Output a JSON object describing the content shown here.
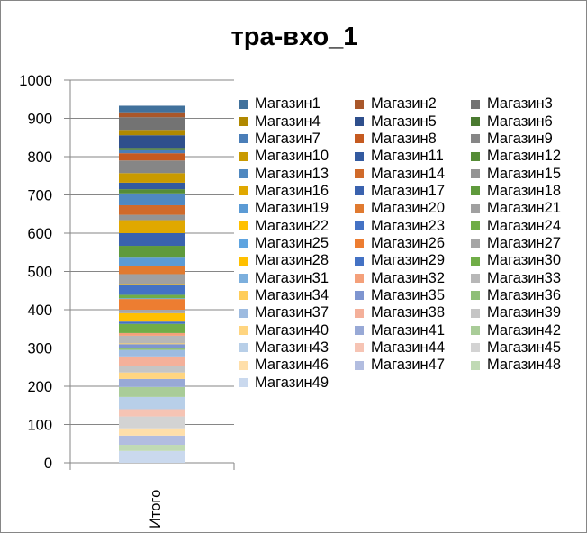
{
  "chart_data": {
    "type": "bar",
    "stacked": true,
    "title": "тра-вхо_1",
    "categories": [
      "Итого"
    ],
    "ylim": [
      0,
      1000
    ],
    "yticks": [
      0,
      100,
      200,
      300,
      400,
      500,
      600,
      700,
      800,
      900,
      1000
    ],
    "grid": true,
    "legend_position": "right",
    "series": [
      {
        "name": "Магазин1",
        "values": [
          17
        ],
        "color": "#41719c"
      },
      {
        "name": "Магазин2",
        "values": [
          13
        ],
        "color": "#a9572a"
      },
      {
        "name": "Магазин3",
        "values": [
          33
        ],
        "color": "#737373"
      },
      {
        "name": "Магазин4",
        "values": [
          14
        ],
        "color": "#b08800"
      },
      {
        "name": "Магазин5",
        "values": [
          33
        ],
        "color": "#2f4f8c"
      },
      {
        "name": "Магазин6",
        "values": [
          6
        ],
        "color": "#4a7a30"
      },
      {
        "name": "Магазин7",
        "values": [
          8
        ],
        "color": "#4a7eb8"
      },
      {
        "name": "Магазин8",
        "values": [
          19
        ],
        "color": "#c55a20"
      },
      {
        "name": "Магазин9",
        "values": [
          33
        ],
        "color": "#868686"
      },
      {
        "name": "Магазин10",
        "values": [
          25
        ],
        "color": "#c99a00"
      },
      {
        "name": "Магазин11",
        "values": [
          17
        ],
        "color": "#335aa0"
      },
      {
        "name": "Магазин12",
        "values": [
          11
        ],
        "color": "#558c36"
      },
      {
        "name": "Магазин13",
        "values": [
          31
        ],
        "color": "#4f88c0"
      },
      {
        "name": "Магазин14",
        "values": [
          25
        ],
        "color": "#d06a2a"
      },
      {
        "name": "Магазин15",
        "values": [
          14
        ],
        "color": "#949494"
      },
      {
        "name": "Магазин16",
        "values": [
          34
        ],
        "color": "#e0a800"
      },
      {
        "name": "Магазин17",
        "values": [
          33
        ],
        "color": "#3a62ae"
      },
      {
        "name": "Магазин18",
        "values": [
          31
        ],
        "color": "#5f9a3c"
      },
      {
        "name": "Магазин19",
        "values": [
          23
        ],
        "color": "#5b9bd5"
      },
      {
        "name": "Магазин20",
        "values": [
          20
        ],
        "color": "#e07a30"
      },
      {
        "name": "Магазин21",
        "values": [
          26
        ],
        "color": "#a0a0a0"
      },
      {
        "name": "Магазин22",
        "values": [
          2
        ],
        "color": "#ffc000"
      },
      {
        "name": "Магазин23",
        "values": [
          26
        ],
        "color": "#4472c4"
      },
      {
        "name": "Магазин24",
        "values": [
          9
        ],
        "color": "#70ad47"
      },
      {
        "name": "Магазин25",
        "values": [
          2
        ],
        "color": "#5ea4e0"
      },
      {
        "name": "Магазин26",
        "values": [
          28
        ],
        "color": "#ed7d31"
      },
      {
        "name": "Магазин27",
        "values": [
          9
        ],
        "color": "#a5a5a5"
      },
      {
        "name": "Магазин28",
        "values": [
          22
        ],
        "color": "#ffc000"
      },
      {
        "name": "Магазин29",
        "values": [
          6
        ],
        "color": "#4472c4"
      },
      {
        "name": "Магазин30",
        "values": [
          24
        ],
        "color": "#70ad47"
      },
      {
        "name": "Магазин31",
        "values": [
          0
        ],
        "color": "#7cafdd"
      },
      {
        "name": "Магазин32",
        "values": [
          7
        ],
        "color": "#f4a07a"
      },
      {
        "name": "Магазин33",
        "values": [
          20
        ],
        "color": "#b7b7b7"
      },
      {
        "name": "Магазин34",
        "values": [
          2
        ],
        "color": "#ffcd5a"
      },
      {
        "name": "Магазин35",
        "values": [
          9
        ],
        "color": "#7e95d0"
      },
      {
        "name": "Магазин36",
        "values": [
          6
        ],
        "color": "#8fbf78"
      },
      {
        "name": "Магазин37",
        "values": [
          17
        ],
        "color": "#9dbbe0"
      },
      {
        "name": "Магазин38",
        "values": [
          26
        ],
        "color": "#f4b09a"
      },
      {
        "name": "Магазин39",
        "values": [
          16
        ],
        "color": "#c5c5c5"
      },
      {
        "name": "Магазин40",
        "values": [
          17
        ],
        "color": "#ffd580"
      },
      {
        "name": "Магазин41",
        "values": [
          21
        ],
        "color": "#98a9d6"
      },
      {
        "name": "Магазин42",
        "values": [
          26
        ],
        "color": "#a9cc98"
      },
      {
        "name": "Магазин43",
        "values": [
          32
        ],
        "color": "#b8cfe8"
      },
      {
        "name": "Магазин44",
        "values": [
          19
        ],
        "color": "#f6c4b4"
      },
      {
        "name": "Магазин45",
        "values": [
          31
        ],
        "color": "#d3d3d3"
      },
      {
        "name": "Магазин46",
        "values": [
          19
        ],
        "color": "#ffdfaa"
      },
      {
        "name": "Магазин47",
        "values": [
          24
        ],
        "color": "#b2bde0"
      },
      {
        "name": "Магазин48",
        "values": [
          16
        ],
        "color": "#c0dab4"
      },
      {
        "name": "Магазин49",
        "values": [
          31
        ],
        "color": "#cad9ee"
      }
    ]
  }
}
